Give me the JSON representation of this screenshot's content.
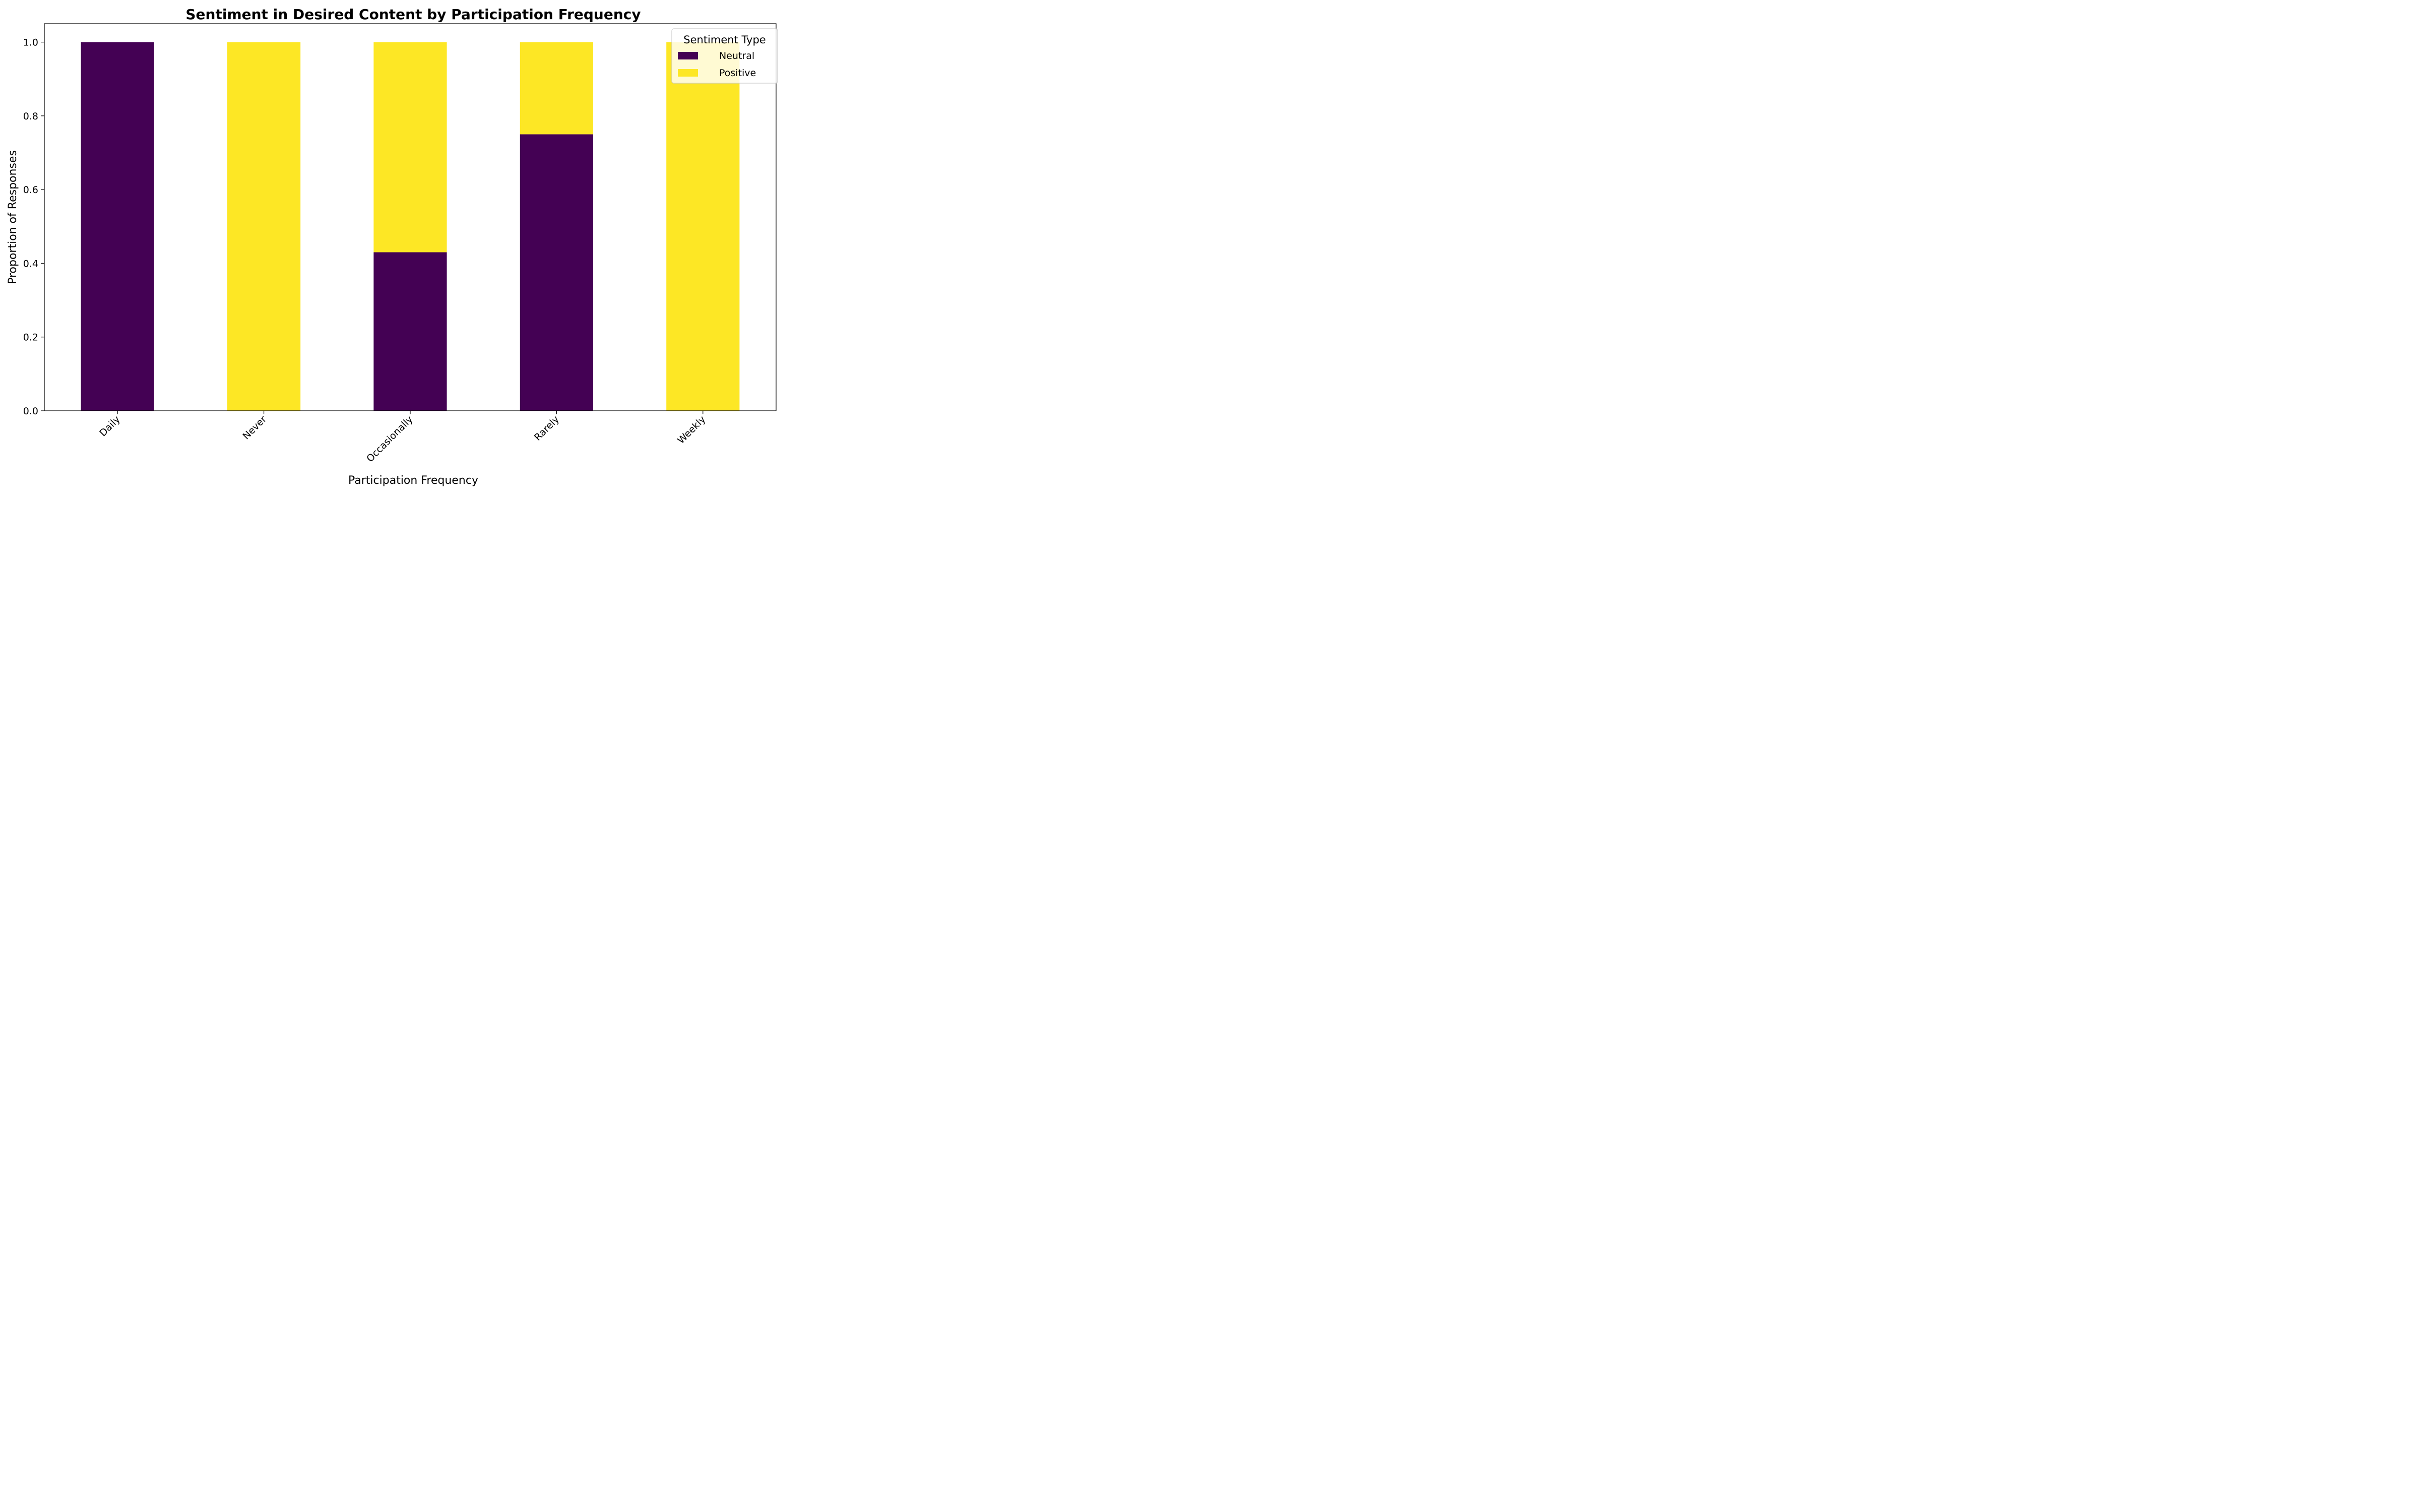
{
  "chart_data": {
    "type": "bar",
    "stacked": true,
    "title": "Sentiment in Desired Content by Participation Frequency",
    "xlabel": "Participation Frequency",
    "ylabel": "Proportion of Responses",
    "categories": [
      "Daily",
      "Never",
      "Occasionally",
      "Rarely",
      "Weekly"
    ],
    "series": [
      {
        "name": "Neutral",
        "color": "#440154",
        "values": [
          1.0,
          0.0,
          0.43,
          0.75,
          0.0
        ]
      },
      {
        "name": "Positive",
        "color": "#fde725",
        "values": [
          0.0,
          1.0,
          0.57,
          0.25,
          1.0
        ]
      }
    ],
    "ylim": [
      0,
      1.05
    ],
    "yticks": [
      "0.0",
      "0.2",
      "0.4",
      "0.6",
      "0.8",
      "1.0"
    ],
    "grid": false,
    "legend": {
      "title": "Sentiment Type",
      "placement": "top-right"
    }
  }
}
